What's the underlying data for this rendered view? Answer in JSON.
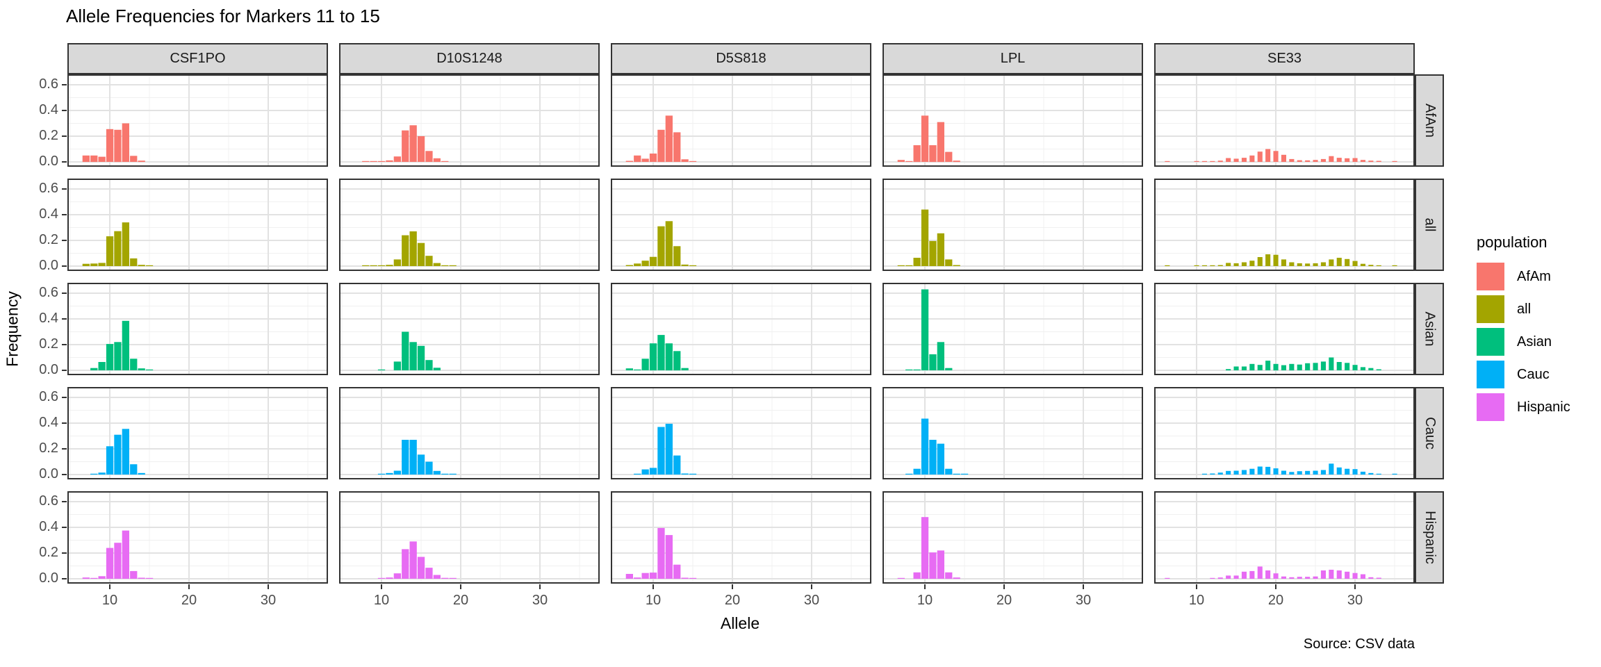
{
  "source_note": "Source: CSV data",
  "chart_data": {
    "type": "bar",
    "title": "Allele Frequencies for Markers 11 to 15",
    "xlabel": "Allele",
    "ylabel": "Frequency",
    "x_ticks": [
      10,
      20,
      30
    ],
    "x_minor_gridlines": [
      5,
      15,
      25,
      35
    ],
    "y_ticks": [
      "0.0",
      "0.2",
      "0.4",
      "0.6"
    ],
    "y_minor_gridlines": [
      0.1,
      0.3,
      0.5
    ],
    "xlim": [
      4.6,
      37.5
    ],
    "ylim": [
      0,
      0.67
    ],
    "grid": true,
    "col_facets": [
      "CSF1PO",
      "D10S1248",
      "D5S818",
      "LPL",
      "SE33"
    ],
    "row_facets": [
      "AfAm",
      "all",
      "Asian",
      "Cauc",
      "Hispanic"
    ],
    "legend": {
      "title": "population",
      "position": "right",
      "entries": [
        {
          "label": "AfAm",
          "color": "#F8766D"
        },
        {
          "label": "all",
          "color": "#A3A500"
        },
        {
          "label": "Asian",
          "color": "#00BF7D"
        },
        {
          "label": "Cauc",
          "color": "#00B0F6"
        },
        {
          "label": "Hispanic",
          "color": "#E76BF3"
        }
      ]
    },
    "bar_width_units": {
      "default": 0.9,
      "SE33": 0.62
    },
    "facets": {
      "CSF1PO": {
        "AfAm": {
          "x": [
            7,
            8,
            9,
            10,
            11,
            12,
            13,
            14
          ],
          "y": [
            0.05,
            0.05,
            0.04,
            0.255,
            0.25,
            0.3,
            0.047,
            0.01
          ]
        },
        "all": {
          "x": [
            7,
            8,
            9,
            10,
            11,
            12,
            13,
            14,
            15
          ],
          "y": [
            0.018,
            0.02,
            0.025,
            0.232,
            0.272,
            0.34,
            0.06,
            0.01,
            0.003
          ]
        },
        "Asian": {
          "x": [
            8,
            9,
            10,
            11,
            12,
            13,
            14,
            15
          ],
          "y": [
            0.018,
            0.065,
            0.205,
            0.22,
            0.385,
            0.09,
            0.015,
            0.005
          ]
        },
        "Cauc": {
          "x": [
            8,
            9,
            10,
            11,
            12,
            13,
            14
          ],
          "y": [
            0.005,
            0.015,
            0.22,
            0.31,
            0.355,
            0.08,
            0.012
          ]
        },
        "Hispanic": {
          "x": [
            7,
            8,
            9,
            10,
            11,
            12,
            13,
            14,
            15
          ],
          "y": [
            0.01,
            0.006,
            0.02,
            0.24,
            0.28,
            0.375,
            0.06,
            0.008,
            0.004
          ]
        }
      },
      "D10S1248": {
        "AfAm": {
          "x": [
            8,
            9,
            10,
            11,
            12,
            13,
            14,
            15,
            16,
            17,
            18
          ],
          "y": [
            0.004,
            0.005,
            0.006,
            0.012,
            0.042,
            0.245,
            0.285,
            0.2,
            0.085,
            0.028,
            0.006
          ]
        },
        "all": {
          "x": [
            8,
            9,
            10,
            11,
            12,
            13,
            14,
            15,
            16,
            17,
            18,
            19
          ],
          "y": [
            0.002,
            0.003,
            0.004,
            0.01,
            0.052,
            0.24,
            0.27,
            0.18,
            0.08,
            0.024,
            0.005,
            0.002
          ]
        },
        "Asian": {
          "x": [
            10,
            12,
            13,
            14,
            15,
            16,
            17
          ],
          "y": [
            0.005,
            0.068,
            0.3,
            0.22,
            0.19,
            0.08,
            0.02
          ]
        },
        "Cauc": {
          "x": [
            10,
            11,
            12,
            13,
            14,
            15,
            16,
            17,
            18,
            19
          ],
          "y": [
            0.003,
            0.012,
            0.03,
            0.27,
            0.27,
            0.155,
            0.1,
            0.028,
            0.005,
            0.003
          ]
        },
        "Hispanic": {
          "x": [
            10,
            11,
            12,
            13,
            14,
            15,
            16,
            17,
            18,
            19
          ],
          "y": [
            0.004,
            0.01,
            0.042,
            0.23,
            0.29,
            0.17,
            0.086,
            0.03,
            0.007,
            0.004
          ]
        }
      },
      "D5S818": {
        "AfAm": {
          "x": [
            7,
            8,
            9,
            10,
            11,
            12,
            13,
            14,
            15
          ],
          "y": [
            0.008,
            0.05,
            0.025,
            0.065,
            0.25,
            0.36,
            0.23,
            0.02,
            0.006
          ]
        },
        "all": {
          "x": [
            7,
            8,
            9,
            10,
            11,
            12,
            13,
            14,
            15
          ],
          "y": [
            0.008,
            0.02,
            0.042,
            0.072,
            0.31,
            0.35,
            0.155,
            0.012,
            0.004
          ]
        },
        "Asian": {
          "x": [
            7,
            8,
            9,
            10,
            11,
            12,
            13,
            14
          ],
          "y": [
            0.015,
            0.006,
            0.09,
            0.21,
            0.275,
            0.21,
            0.15,
            0.018
          ]
        },
        "Cauc": {
          "x": [
            8,
            9,
            10,
            11,
            12,
            13,
            14,
            15
          ],
          "y": [
            0.004,
            0.04,
            0.052,
            0.37,
            0.395,
            0.148,
            0.008,
            0.003
          ]
        },
        "Hispanic": {
          "x": [
            7,
            8,
            9,
            10,
            11,
            12,
            13,
            14,
            15
          ],
          "y": [
            0.038,
            0.01,
            0.045,
            0.048,
            0.395,
            0.34,
            0.11,
            0.008,
            0.004
          ]
        }
      },
      "LPL": {
        "AfAm": {
          "x": [
            7,
            8,
            9,
            10,
            11,
            12,
            13,
            14
          ],
          "y": [
            0.015,
            0.005,
            0.13,
            0.36,
            0.13,
            0.31,
            0.078,
            0.01
          ]
        },
        "all": {
          "x": [
            7,
            8,
            9,
            10,
            11,
            12,
            13,
            14
          ],
          "y": [
            0.006,
            0.004,
            0.065,
            0.44,
            0.195,
            0.255,
            0.052,
            0.008
          ]
        },
        "Asian": {
          "x": [
            8,
            9,
            10,
            11,
            12,
            13
          ],
          "y": [
            0.005,
            0.006,
            0.63,
            0.125,
            0.22,
            0.018
          ]
        },
        "Cauc": {
          "x": [
            8,
            9,
            10,
            11,
            12,
            13,
            14,
            15
          ],
          "y": [
            0.003,
            0.045,
            0.435,
            0.27,
            0.24,
            0.045,
            0.006,
            0.003
          ]
        },
        "Hispanic": {
          "x": [
            7,
            9,
            10,
            11,
            12,
            13,
            14
          ],
          "y": [
            0.004,
            0.05,
            0.48,
            0.205,
            0.22,
            0.05,
            0.01
          ]
        }
      },
      "SE33": {
        "AfAm": {
          "x": [
            6.3,
            10,
            11,
            12,
            13,
            14,
            15,
            16,
            17,
            18,
            19,
            20,
            21,
            22,
            23,
            24,
            25,
            26,
            27,
            28,
            29,
            30,
            31,
            32,
            33,
            35
          ],
          "y": [
            0.004,
            0.004,
            0.004,
            0.005,
            0.01,
            0.03,
            0.025,
            0.032,
            0.05,
            0.08,
            0.1,
            0.085,
            0.055,
            0.022,
            0.013,
            0.012,
            0.015,
            0.022,
            0.045,
            0.032,
            0.028,
            0.03,
            0.015,
            0.01,
            0.008,
            0.004
          ]
        },
        "all": {
          "x": [
            6.3,
            10,
            11,
            12,
            13,
            14,
            15,
            16,
            17,
            18,
            19,
            20,
            21,
            22,
            23,
            24,
            25,
            26,
            27,
            28,
            29,
            30,
            31,
            32,
            33,
            35
          ],
          "y": [
            0.002,
            0.003,
            0.003,
            0.004,
            0.008,
            0.025,
            0.022,
            0.03,
            0.042,
            0.07,
            0.092,
            0.088,
            0.052,
            0.03,
            0.022,
            0.02,
            0.022,
            0.03,
            0.052,
            0.065,
            0.055,
            0.04,
            0.018,
            0.01,
            0.006,
            0.002
          ]
        },
        "Asian": {
          "x": [
            14,
            15,
            16,
            17,
            18,
            19,
            20,
            21,
            22,
            23,
            24,
            25,
            26,
            27,
            28,
            29,
            30,
            31,
            32,
            33
          ],
          "y": [
            0.01,
            0.03,
            0.03,
            0.05,
            0.042,
            0.075,
            0.05,
            0.04,
            0.05,
            0.045,
            0.055,
            0.058,
            0.068,
            0.1,
            0.065,
            0.058,
            0.042,
            0.025,
            0.018,
            0.008
          ]
        },
        "Cauc": {
          "x": [
            11,
            12,
            13,
            14,
            15,
            16,
            17,
            18,
            19,
            20,
            21,
            22,
            23,
            24,
            25,
            26,
            27,
            28,
            29,
            30,
            31,
            32,
            33,
            35
          ],
          "y": [
            0.004,
            0.008,
            0.015,
            0.028,
            0.03,
            0.035,
            0.045,
            0.062,
            0.06,
            0.048,
            0.03,
            0.02,
            0.026,
            0.028,
            0.03,
            0.035,
            0.085,
            0.055,
            0.045,
            0.042,
            0.022,
            0.012,
            0.006,
            0.006
          ]
        },
        "Hispanic": {
          "x": [
            6.3,
            12,
            13,
            14,
            15,
            16,
            17,
            18,
            19,
            20,
            21,
            22,
            23,
            24,
            25,
            26,
            27,
            28,
            29,
            30,
            31,
            32,
            33
          ],
          "y": [
            0.005,
            0.006,
            0.01,
            0.025,
            0.025,
            0.055,
            0.06,
            0.095,
            0.065,
            0.042,
            0.018,
            0.012,
            0.015,
            0.015,
            0.018,
            0.065,
            0.07,
            0.065,
            0.055,
            0.045,
            0.035,
            0.012,
            0.008
          ]
        }
      }
    }
  }
}
